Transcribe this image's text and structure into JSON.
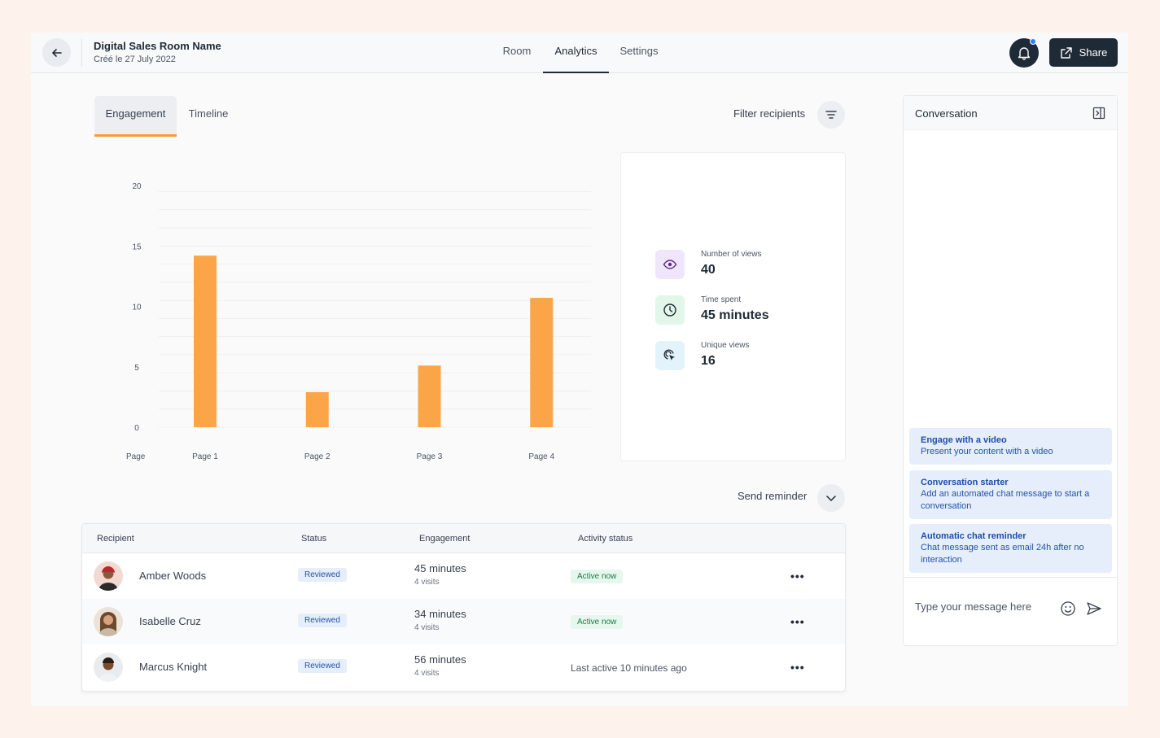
{
  "header": {
    "room_name": "Digital Sales Room Name",
    "room_date": "Créé le 27 July 2022",
    "tabs": [
      {
        "label": "Room"
      },
      {
        "label": "Analytics"
      },
      {
        "label": "Settings"
      }
    ],
    "active_tab": "Analytics",
    "share_label": "Share"
  },
  "sub_tabs": [
    {
      "label": "Engagement"
    },
    {
      "label": "Timeline"
    }
  ],
  "filter_label": "Filter recipients",
  "chart_data": {
    "type": "bar",
    "categories": [
      "Page 1",
      "Page 2",
      "Page 3",
      "Page 4"
    ],
    "values": [
      14.2,
      2.9,
      5.1,
      10.7
    ],
    "xlabel": "Page",
    "ylabel": "",
    "ylim": [
      0,
      20
    ],
    "yticks": [
      0,
      5,
      10,
      15,
      20
    ],
    "bar_color": "#fca548"
  },
  "stats": [
    {
      "label": "Number of views",
      "value": "40",
      "icon": "eye-icon",
      "bg": "#f0e6fb",
      "fg": "#5b2c83"
    },
    {
      "label": "Time spent",
      "value": "45 minutes",
      "icon": "clock-icon",
      "bg": "#e3f6ea",
      "fg": "#1c7a45"
    },
    {
      "label": "Unique views",
      "value": "16",
      "icon": "cursor-click-icon",
      "bg": "#e3f3fb",
      "fg": "#1f2a37"
    }
  ],
  "reminder_label": "Send reminder",
  "table": {
    "headers": {
      "recipient": "Recipient",
      "status": "Status",
      "engagement": "Engagement",
      "activity": "Activity status"
    },
    "rows": [
      {
        "name": "Amber Woods",
        "status": "Reviewed",
        "time": "45 minutes",
        "visits": "4 visits",
        "activity": "Active now",
        "activity_active": true,
        "avatar_bg": "#f3d9d3",
        "hair": "#c0262d"
      },
      {
        "name": "Isabelle Cruz",
        "status": "Reviewed",
        "time": "34 minutes",
        "visits": "4 visits",
        "activity": "Active now",
        "activity_active": true,
        "avatar_bg": "#ede2d6",
        "hair": "#6b4a2e"
      },
      {
        "name": "Marcus Knight",
        "status": "Reviewed",
        "time": "56 minutes",
        "visits": "4 visits",
        "activity": "Last active 10 minutes ago",
        "activity_active": false,
        "avatar_bg": "#e9ecef",
        "hair": "#2b1d14"
      }
    ]
  },
  "conversation": {
    "title": "Conversation",
    "suggestions": [
      {
        "title": "Engage with a video",
        "desc": "Present your content with a video"
      },
      {
        "title": "Conversation starter",
        "desc": "Add an automated chat message to start a conversation"
      },
      {
        "title": "Automatic chat reminder",
        "desc": "Chat message sent as email 24h after no interaction"
      }
    ],
    "input_placeholder": "Type your message here"
  }
}
